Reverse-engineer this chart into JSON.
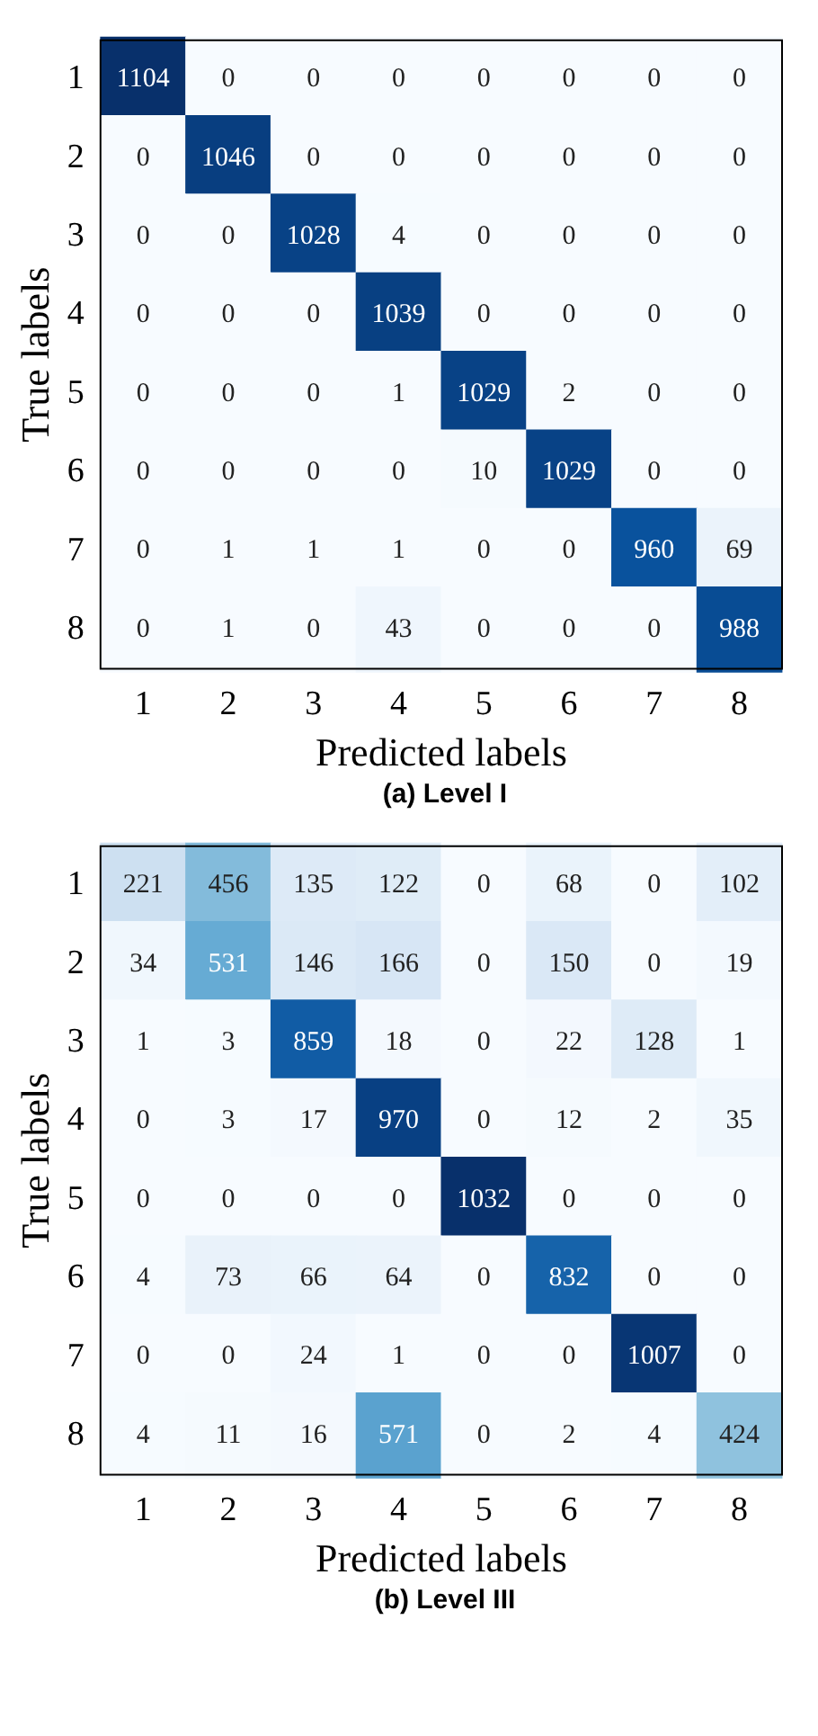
{
  "chart_data": [
    {
      "type": "heatmap",
      "title": "(a) Level I",
      "xlabel": "Predicted labels",
      "ylabel": "True labels",
      "data_labels": true,
      "categories": [
        "1",
        "2",
        "3",
        "4",
        "5",
        "6",
        "7",
        "8"
      ],
      "y_categories": [
        "1",
        "2",
        "3",
        "4",
        "5",
        "6",
        "7",
        "8"
      ],
      "cells": [
        [
          1104,
          0,
          0,
          0,
          0,
          0,
          0,
          0
        ],
        [
          0,
          1046,
          0,
          0,
          0,
          0,
          0,
          0
        ],
        [
          0,
          0,
          1028,
          4,
          0,
          0,
          0,
          0
        ],
        [
          0,
          0,
          0,
          1039,
          0,
          0,
          0,
          0
        ],
        [
          0,
          0,
          0,
          1,
          1029,
          2,
          0,
          0
        ],
        [
          0,
          0,
          0,
          0,
          10,
          1029,
          0,
          0
        ],
        [
          0,
          1,
          1,
          1,
          0,
          0,
          960,
          69
        ],
        [
          0,
          1,
          0,
          43,
          0,
          0,
          0,
          988
        ]
      ]
    },
    {
      "type": "heatmap",
      "title": "(b) Level III",
      "xlabel": "Predicted labels",
      "ylabel": "True labels",
      "data_labels": true,
      "categories": [
        "1",
        "2",
        "3",
        "4",
        "5",
        "6",
        "7",
        "8"
      ],
      "y_categories": [
        "1",
        "2",
        "3",
        "4",
        "5",
        "6",
        "7",
        "8"
      ],
      "cells": [
        [
          221,
          456,
          135,
          122,
          0,
          68,
          0,
          102
        ],
        [
          34,
          531,
          146,
          166,
          0,
          150,
          0,
          19
        ],
        [
          1,
          3,
          859,
          18,
          0,
          22,
          128,
          1
        ],
        [
          0,
          3,
          17,
          970,
          0,
          12,
          2,
          35
        ],
        [
          0,
          0,
          0,
          0,
          1032,
          0,
          0,
          0
        ],
        [
          4,
          73,
          66,
          64,
          0,
          832,
          0,
          0
        ],
        [
          0,
          0,
          24,
          1,
          0,
          0,
          1007,
          0
        ],
        [
          4,
          11,
          16,
          571,
          0,
          2,
          4,
          424
        ]
      ]
    }
  ]
}
